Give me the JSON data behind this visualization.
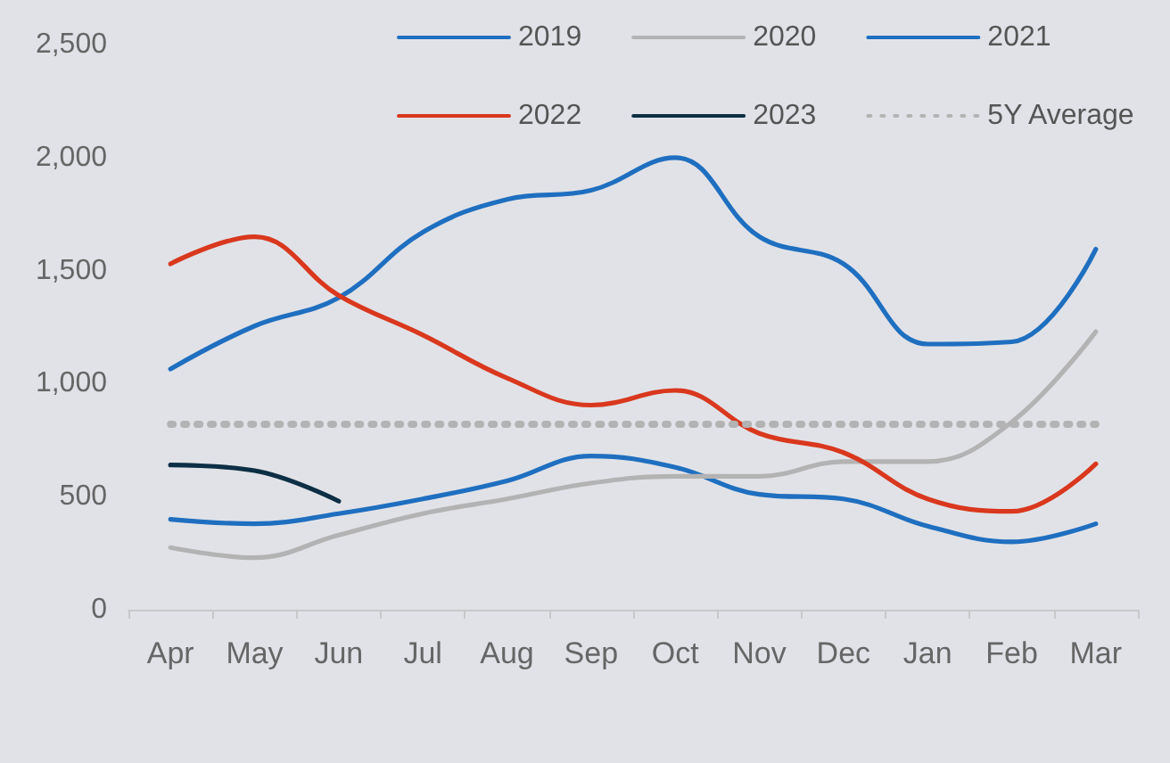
{
  "chart_data": {
    "type": "line",
    "categories": [
      "Apr",
      "May",
      "Jun",
      "Jul",
      "Aug",
      "Sep",
      "Oct",
      "Nov",
      "Dec",
      "Jan",
      "Feb",
      "Mar"
    ],
    "series": [
      {
        "name": "2019",
        "color": "#1f6fc0",
        "values": [
          400,
          380,
          425,
          490,
          570,
          680,
          630,
          510,
          490,
          370,
          300,
          380
        ]
      },
      {
        "name": "2020",
        "color": "#b3b3b3",
        "values": [
          275,
          230,
          330,
          425,
          490,
          560,
          590,
          590,
          655,
          655,
          830,
          1230
        ]
      },
      {
        "name": "2021",
        "color": "#1f6fc0",
        "values": [
          1065,
          1255,
          1380,
          1670,
          1815,
          1855,
          2000,
          1650,
          1530,
          1175,
          1185,
          1595
        ]
      },
      {
        "name": "2022",
        "color": "#d9381e",
        "values": [
          1530,
          1650,
          1390,
          1215,
          1025,
          905,
          970,
          780,
          695,
          490,
          435,
          645
        ]
      },
      {
        "name": "2023",
        "color": "#0d2f45",
        "values": [
          640,
          615,
          480,
          null,
          null,
          null,
          null,
          null,
          null,
          null,
          null,
          null
        ]
      },
      {
        "name": "5Y Average",
        "color": "#b3b3b3",
        "line_style": "dotted",
        "values": [
          820,
          820,
          820,
          820,
          820,
          820,
          820,
          820,
          820,
          820,
          820,
          820
        ]
      }
    ],
    "ylim": [
      0,
      2500
    ],
    "yticks": [
      0,
      500,
      {
        "value": 1000,
        "label": "1,000"
      },
      {
        "value": 1500,
        "label": "1,500"
      },
      {
        "value": 2000,
        "label": "2,000"
      },
      {
        "value": 2500,
        "label": "2,500"
      }
    ],
    "grid": false,
    "legend": "top right",
    "marker": "none",
    "line_style": "solid"
  }
}
